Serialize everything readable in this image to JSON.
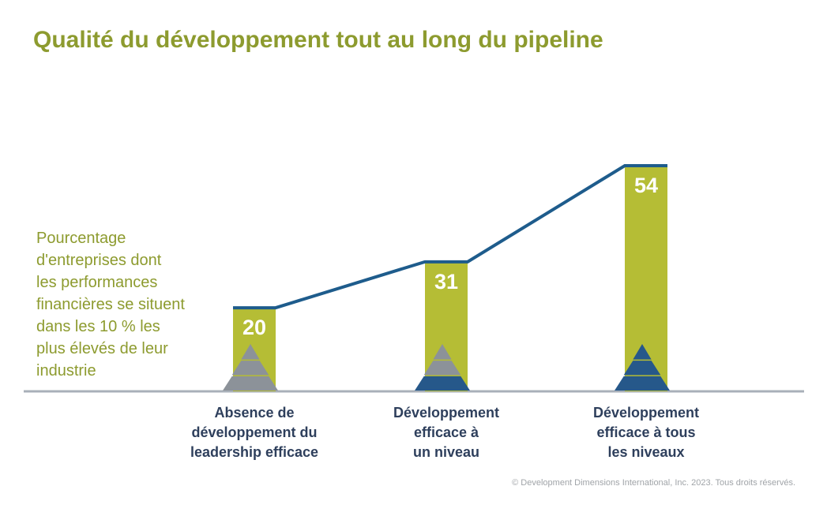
{
  "chart_data": {
    "type": "bar",
    "title": "Qualité du développement tout au long du pipeline",
    "ylabel": "Pourcentage\nd'entreprises dont\nles performances\nfinancières se situent\ndans les 10 % les\nplus élevés de leur\nindustrie",
    "categories": [
      "Absence de\ndéveloppement du\nleadership efficace",
      "Développement\nefficace à\nun niveau",
      "Développement\nefficace à tous\nles niveaux"
    ],
    "values": [
      20,
      31,
      54
    ],
    "data_labels": [
      "20",
      "31",
      "54"
    ],
    "pyramid_icons": [
      {
        "name": "pyramid-icon",
        "levels_highlighted": 0
      },
      {
        "name": "pyramid-icon",
        "levels_highlighted": 1
      },
      {
        "name": "pyramid-icon",
        "levels_highlighted": 3
      }
    ],
    "ylim": [
      0,
      54
    ],
    "grid": false,
    "legend": "none",
    "colors": {
      "bar": "#b5bd35",
      "line": "#1e5c8c",
      "title": "#8d9b2f",
      "pyramid_gray": "#8c9299",
      "pyramid_blue": "#26588a",
      "baseline": "#a9b0b9",
      "category_label": "#2e3f5c"
    }
  },
  "copyright": "© Development Dimensions International, Inc. 2023. Tous droits réservés."
}
